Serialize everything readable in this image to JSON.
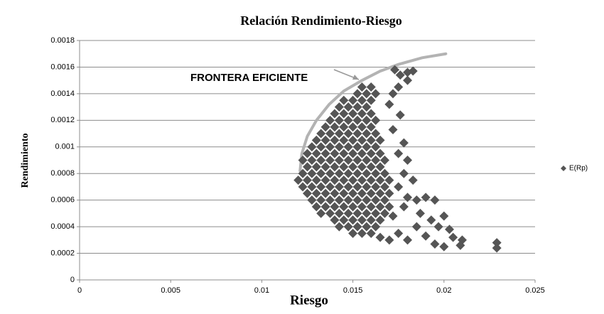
{
  "chart_data": {
    "type": "scatter",
    "title": "Relación Rendimiento-Riesgo",
    "x_label": "Riesgo",
    "y_label": "Rendimiento",
    "xlim": [
      0,
      0.025
    ],
    "xticks": [
      0,
      0.005,
      0.01,
      0.015,
      0.02,
      0.025
    ],
    "ylim": [
      0,
      0.0018
    ],
    "yticks": [
      0,
      0.0002,
      0.0004,
      0.0006,
      0.0008,
      0.001,
      0.0012,
      0.0014,
      0.0016,
      0.0018
    ],
    "grid": true,
    "legend": "right",
    "annotation": {
      "text": "FRONTERA EFICIENTE",
      "color": "#a8a8a8"
    },
    "frontier": {
      "color": "#b3b3b3",
      "x": [
        0.0121,
        0.0122,
        0.0125,
        0.013,
        0.0137,
        0.0145,
        0.0155,
        0.0165,
        0.0175,
        0.0188,
        0.0201
      ],
      "y": [
        0.00082,
        0.00095,
        0.00108,
        0.0012,
        0.00132,
        0.00142,
        0.0015,
        0.00157,
        0.00162,
        0.00167,
        0.0017
      ]
    },
    "series": [
      {
        "name": "E(Rp)",
        "color": "#555555",
        "x": [
          0.015,
          0.0155,
          0.016,
          0.01425,
          0.01475,
          0.01525,
          0.01575,
          0.01625,
          0.014,
          0.0145,
          0.015,
          0.0155,
          0.016,
          0.0165,
          0.01325,
          0.01375,
          0.01425,
          0.01475,
          0.01525,
          0.01575,
          0.01625,
          0.01675,
          0.013,
          0.0135,
          0.014,
          0.0145,
          0.015,
          0.0155,
          0.016,
          0.0165,
          0.017,
          0.01275,
          0.01325,
          0.01375,
          0.01425,
          0.01475,
          0.01525,
          0.01575,
          0.01625,
          0.01675,
          0.0125,
          0.013,
          0.0135,
          0.014,
          0.0145,
          0.015,
          0.0155,
          0.016,
          0.0165,
          0.017,
          0.01225,
          0.01275,
          0.01325,
          0.01375,
          0.01425,
          0.01475,
          0.01525,
          0.01575,
          0.01625,
          0.01675,
          0.012,
          0.0125,
          0.013,
          0.0135,
          0.014,
          0.0145,
          0.015,
          0.0155,
          0.016,
          0.0165,
          0.017,
          0.01225,
          0.01275,
          0.01325,
          0.01375,
          0.01425,
          0.01475,
          0.01525,
          0.01575,
          0.01625,
          0.01675,
          0.0125,
          0.013,
          0.0135,
          0.014,
          0.0145,
          0.015,
          0.0155,
          0.016,
          0.0165,
          0.01225,
          0.01275,
          0.01325,
          0.01375,
          0.01425,
          0.01475,
          0.01525,
          0.01575,
          0.01625,
          0.01675,
          0.0125,
          0.013,
          0.0135,
          0.014,
          0.0145,
          0.015,
          0.0155,
          0.016,
          0.0165,
          0.01275,
          0.01325,
          0.01375,
          0.01425,
          0.01475,
          0.01525,
          0.01575,
          0.01625,
          0.013,
          0.0135,
          0.014,
          0.0145,
          0.015,
          0.0155,
          0.016,
          0.0165,
          0.01325,
          0.01375,
          0.01425,
          0.01475,
          0.01525,
          0.01575,
          0.01625,
          0.0135,
          0.014,
          0.0145,
          0.015,
          0.0155,
          0.016,
          0.01375,
          0.01425,
          0.01475,
          0.01525,
          0.01575,
          0.01625,
          0.014,
          0.0145,
          0.015,
          0.0155,
          0.016,
          0.01425,
          0.01475,
          0.01525,
          0.01575,
          0.0145,
          0.015,
          0.0155,
          0.016,
          0.01525,
          0.01575,
          0.01625,
          0.0155,
          0.016,
          0.0173,
          0.0176,
          0.018,
          0.0183,
          0.018,
          0.0175,
          0.0172,
          0.017,
          0.0176,
          0.0172,
          0.0178,
          0.0175,
          0.018,
          0.0178,
          0.0183,
          0.0175,
          0.018,
          0.0185,
          0.019,
          0.0195,
          0.0187,
          0.0193,
          0.02,
          0.0197,
          0.0203,
          0.0185,
          0.019,
          0.0195,
          0.0205,
          0.021,
          0.0209,
          0.02,
          0.0229,
          0.0229,
          0.018,
          0.0175,
          0.017,
          0.0165,
          0.0172,
          0.0178
        ],
        "values": [
          0.00035,
          0.00035,
          0.00035,
          0.0004,
          0.0004,
          0.0004,
          0.0004,
          0.0004,
          0.00045,
          0.00045,
          0.00045,
          0.00045,
          0.00045,
          0.00045,
          0.0005,
          0.0005,
          0.0005,
          0.0005,
          0.0005,
          0.0005,
          0.0005,
          0.0005,
          0.00055,
          0.00055,
          0.00055,
          0.00055,
          0.00055,
          0.00055,
          0.00055,
          0.00055,
          0.00055,
          0.0006,
          0.0006,
          0.0006,
          0.0006,
          0.0006,
          0.0006,
          0.0006,
          0.0006,
          0.0006,
          0.00065,
          0.00065,
          0.00065,
          0.00065,
          0.00065,
          0.00065,
          0.00065,
          0.00065,
          0.00065,
          0.00065,
          0.0007,
          0.0007,
          0.0007,
          0.0007,
          0.0007,
          0.0007,
          0.0007,
          0.0007,
          0.0007,
          0.0007,
          0.00075,
          0.00075,
          0.00075,
          0.00075,
          0.00075,
          0.00075,
          0.00075,
          0.00075,
          0.00075,
          0.00075,
          0.00075,
          0.0008,
          0.0008,
          0.0008,
          0.0008,
          0.0008,
          0.0008,
          0.0008,
          0.0008,
          0.0008,
          0.0008,
          0.00085,
          0.00085,
          0.00085,
          0.00085,
          0.00085,
          0.00085,
          0.00085,
          0.00085,
          0.00085,
          0.0009,
          0.0009,
          0.0009,
          0.0009,
          0.0009,
          0.0009,
          0.0009,
          0.0009,
          0.0009,
          0.0009,
          0.00095,
          0.00095,
          0.00095,
          0.00095,
          0.00095,
          0.00095,
          0.00095,
          0.00095,
          0.00095,
          0.001,
          0.001,
          0.001,
          0.001,
          0.001,
          0.001,
          0.001,
          0.001,
          0.00105,
          0.00105,
          0.00105,
          0.00105,
          0.00105,
          0.00105,
          0.00105,
          0.00105,
          0.0011,
          0.0011,
          0.0011,
          0.0011,
          0.0011,
          0.0011,
          0.0011,
          0.00115,
          0.00115,
          0.00115,
          0.00115,
          0.00115,
          0.00115,
          0.0012,
          0.0012,
          0.0012,
          0.0012,
          0.0012,
          0.0012,
          0.00125,
          0.00125,
          0.00125,
          0.00125,
          0.00125,
          0.0013,
          0.0013,
          0.0013,
          0.0013,
          0.00135,
          0.00135,
          0.00135,
          0.00135,
          0.0014,
          0.0014,
          0.0014,
          0.00145,
          0.00145,
          0.00158,
          0.00154,
          0.00156,
          0.00157,
          0.0015,
          0.00145,
          0.0014,
          0.00132,
          0.00124,
          0.00113,
          0.00103,
          0.00095,
          0.0009,
          0.0008,
          0.00075,
          0.0007,
          0.00062,
          0.0006,
          0.00062,
          0.0006,
          0.0005,
          0.00045,
          0.00048,
          0.0004,
          0.00038,
          0.0004,
          0.00033,
          0.00027,
          0.00032,
          0.0003,
          0.00026,
          0.00025,
          0.00028,
          0.00024,
          0.0003,
          0.00035,
          0.0003,
          0.00032,
          0.00048,
          0.00055
        ]
      }
    ]
  }
}
